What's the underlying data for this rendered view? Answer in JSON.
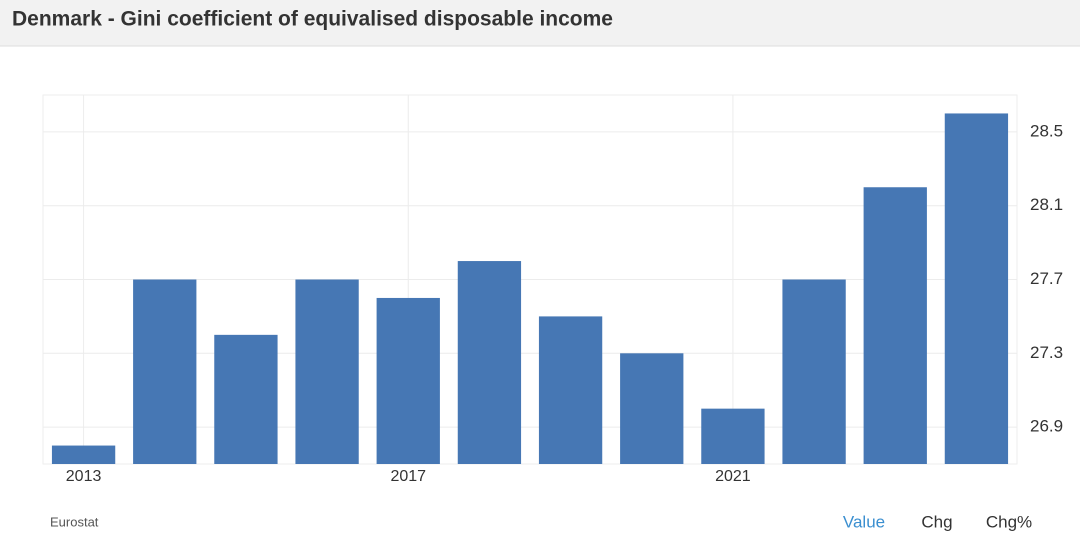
{
  "chart_data": {
    "type": "bar",
    "title": "Denmark - Gini coefficient of equivalised disposable income",
    "categories": [
      "2013",
      null,
      null,
      null,
      "2017",
      null,
      null,
      null,
      "2021",
      null,
      null,
      null
    ],
    "values": [
      26.8,
      27.7,
      27.4,
      27.7,
      27.6,
      27.8,
      27.5,
      27.3,
      27.0,
      27.7,
      28.2,
      28.6
    ],
    "color": "#4677b4",
    "ylim": [
      26.7,
      28.7
    ],
    "yticks": [
      26.9,
      27.3,
      27.7,
      28.1,
      28.5
    ],
    "grid": true,
    "source": "Eurostat",
    "tabs": [
      "Value",
      "Chg",
      "Chg%"
    ]
  }
}
